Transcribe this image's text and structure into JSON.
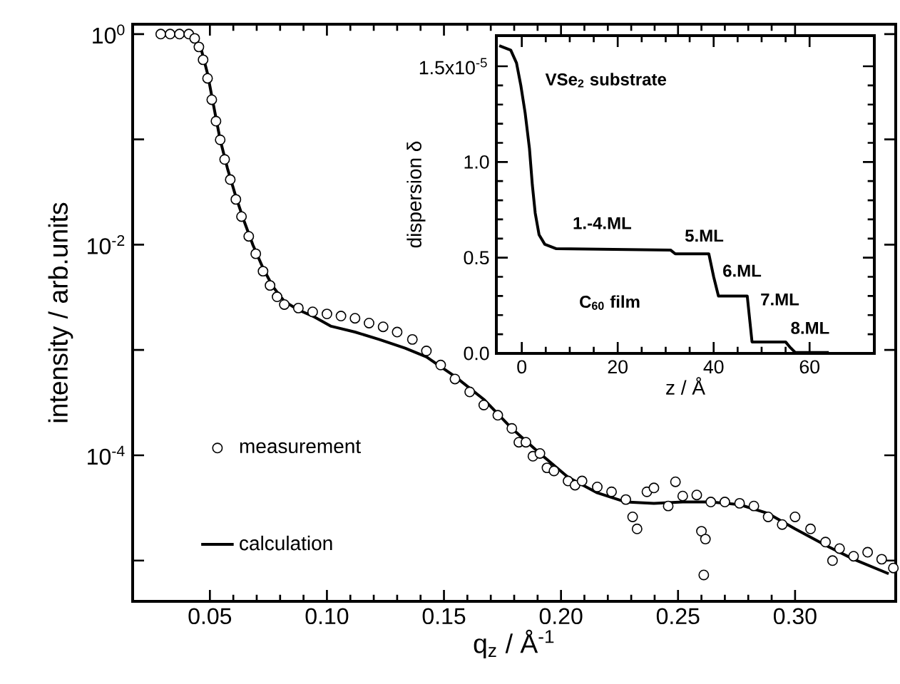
{
  "chart_data": [
    {
      "type": "line",
      "log": true,
      "legend": "bottom left",
      "xlabel": "q$_{z}$ / Å$^{-1}$",
      "ylabel": "intensity / arb.units",
      "xlim": [
        0.017,
        0.343
      ],
      "ylim": [
        4.1e-06,
        1.24
      ],
      "xticks": [
        0.05,
        {
          "value": 0.1,
          "label": "0.10"
        },
        0.15,
        {
          "value": 0.2,
          "label": "0.20"
        },
        0.25,
        {
          "value": 0.3,
          "label": "0.30"
        }
      ],
      "yticks": [
        {
          "value": 1,
          "label": "10$^{0}$"
        },
        {
          "value": 0.1,
          "label": null
        },
        {
          "value": 0.01,
          "label": "10$^{-2}$"
        },
        {
          "value": 0.001,
          "label": null
        },
        {
          "value": 0.0001,
          "label": "10$^{-4}$"
        },
        {
          "value": 1e-05,
          "label": null
        }
      ],
      "series": [
        {
          "name": "measurement",
          "type": "scatter",
          "marker": "circle",
          "color": "#000000",
          "x": [
            0.029,
            0.033,
            0.037,
            0.041,
            0.0435,
            0.0453,
            0.0471,
            0.049,
            0.0508,
            0.0526,
            0.0544,
            0.0563,
            0.0587,
            0.0611,
            0.0635,
            0.0666,
            0.0696,
            0.0727,
            0.0757,
            0.0787,
            0.0818,
            0.0878,
            0.0939,
            0.1,
            0.106,
            0.112,
            0.118,
            0.124,
            0.13,
            0.1365,
            0.1425,
            0.1486,
            0.1547,
            0.161,
            0.167,
            0.173,
            0.179,
            0.182,
            0.185,
            0.188,
            0.191,
            0.194,
            0.197,
            0.203,
            0.206,
            0.209,
            0.2155,
            0.2216,
            0.2277,
            0.2306,
            0.2325,
            0.2367,
            0.2397,
            0.2458,
            0.2489,
            0.252,
            0.258,
            0.26,
            0.2617,
            0.261,
            0.264,
            0.27,
            0.2763,
            0.2824,
            0.2885,
            0.2945,
            0.3,
            0.3066,
            0.313,
            0.316,
            0.319,
            0.325,
            0.331,
            0.337,
            0.342
          ],
          "values": [
            1.0,
            1.0,
            1.0,
            1.0,
            0.91,
            0.755,
            0.57,
            0.38,
            0.238,
            0.149,
            0.099,
            0.0645,
            0.0415,
            0.0269,
            0.0185,
            0.012,
            0.0082,
            0.0056,
            0.0041,
            0.0032,
            0.0027,
            0.0025,
            0.0023,
            0.0022,
            0.0021,
            0.002,
            0.0018,
            0.00166,
            0.00148,
            0.00126,
            0.00098,
            0.00072,
            0.00053,
            0.0004,
            0.0003,
            0.00024,
            0.00018,
            0.000133,
            0.000133,
            9.8e-05,
            0.000104,
            7.6e-05,
            7.1e-05,
            5.7e-05,
            5.2e-05,
            5.7e-05,
            5e-05,
            4.5e-05,
            3.8e-05,
            2.6e-05,
            2e-05,
            4.5e-05,
            4.9e-05,
            3.3e-05,
            5.6e-05,
            4.1e-05,
            4.2e-05,
            1.9e-05,
            1.6e-05,
            7.3e-06,
            3.6e-05,
            3.6e-05,
            3.5e-05,
            3.3e-05,
            2.6e-05,
            2.2e-05,
            2.6e-05,
            2e-05,
            1.5e-05,
            1e-05,
            1.3e-05,
            1.1e-05,
            1.2e-05,
            1.03e-05,
            8.5e-06
          ]
        },
        {
          "name": "calculation",
          "type": "line",
          "marker": "none",
          "color": "#000000",
          "x": [
            0.029,
            0.041,
            0.0441,
            0.0465,
            0.049,
            0.0514,
            0.0544,
            0.0575,
            0.0611,
            0.0648,
            0.0684,
            0.0727,
            0.0769,
            0.0818,
            0.0878,
            0.0939,
            0.1018,
            0.112,
            0.1223,
            0.1334,
            0.1425,
            0.1547,
            0.167,
            0.179,
            0.191,
            0.203,
            0.2155,
            0.2277,
            0.2397,
            0.252,
            0.264,
            0.2763,
            0.2885,
            0.3,
            0.313,
            0.325,
            0.34
          ],
          "values": [
            1.0,
            1.0,
            0.88,
            0.69,
            0.42,
            0.22,
            0.099,
            0.053,
            0.0285,
            0.0163,
            0.0099,
            0.006,
            0.004,
            0.0029,
            0.0024,
            0.0021,
            0.00168,
            0.00148,
            0.00126,
            0.00104,
            0.00086,
            0.00056,
            0.00034,
            0.00018,
            0.000104,
            6.2e-05,
            4.4e-05,
            3.6e-05,
            3.5e-05,
            3.6e-05,
            3.6e-05,
            3.4e-05,
            2.8e-05,
            2e-05,
            1.4e-05,
            1.03e-05,
            7.5e-06
          ]
        }
      ]
    },
    {
      "type": "line",
      "xlabel": "z / Å",
      "ylabel": "dispersion δ",
      "xlim": [
        -5.3,
        73.5
      ],
      "ylim": [
        0,
        1.66
      ],
      "xticks": [
        0,
        20,
        40,
        60
      ],
      "yticks": [
        {
          "value": 0,
          "label": "0.0"
        },
        {
          "value": 0.5,
          "label": "0.5"
        },
        {
          "value": 1,
          "label": "1.0"
        },
        {
          "value": 1.5,
          "label": null
        }
      ],
      "color": "#000000",
      "x": [
        -4.7,
        -2.3,
        -1.1,
        -0.2,
        0.7,
        1.6,
        2.2,
        2.8,
        3.6,
        4.8,
        7.2,
        31,
        32,
        39,
        40,
        41,
        47,
        48,
        55,
        56,
        57,
        64
      ],
      "values": [
        1.607,
        1.584,
        1.517,
        1.4,
        1.256,
        1.07,
        0.88,
        0.733,
        0.62,
        0.57,
        0.547,
        0.54,
        0.52,
        0.52,
        0.4,
        0.3,
        0.3,
        0.06,
        0.06,
        0.03,
        0.005,
        0.005
      ],
      "annotations": [
        "VSe$_{2}$ substrate",
        "1.-4.ML",
        "5.ML",
        "6.ML",
        "7.ML",
        "8.ML",
        "C$_{60}$ film",
        "1.5x10$^{-5}$"
      ]
    }
  ]
}
